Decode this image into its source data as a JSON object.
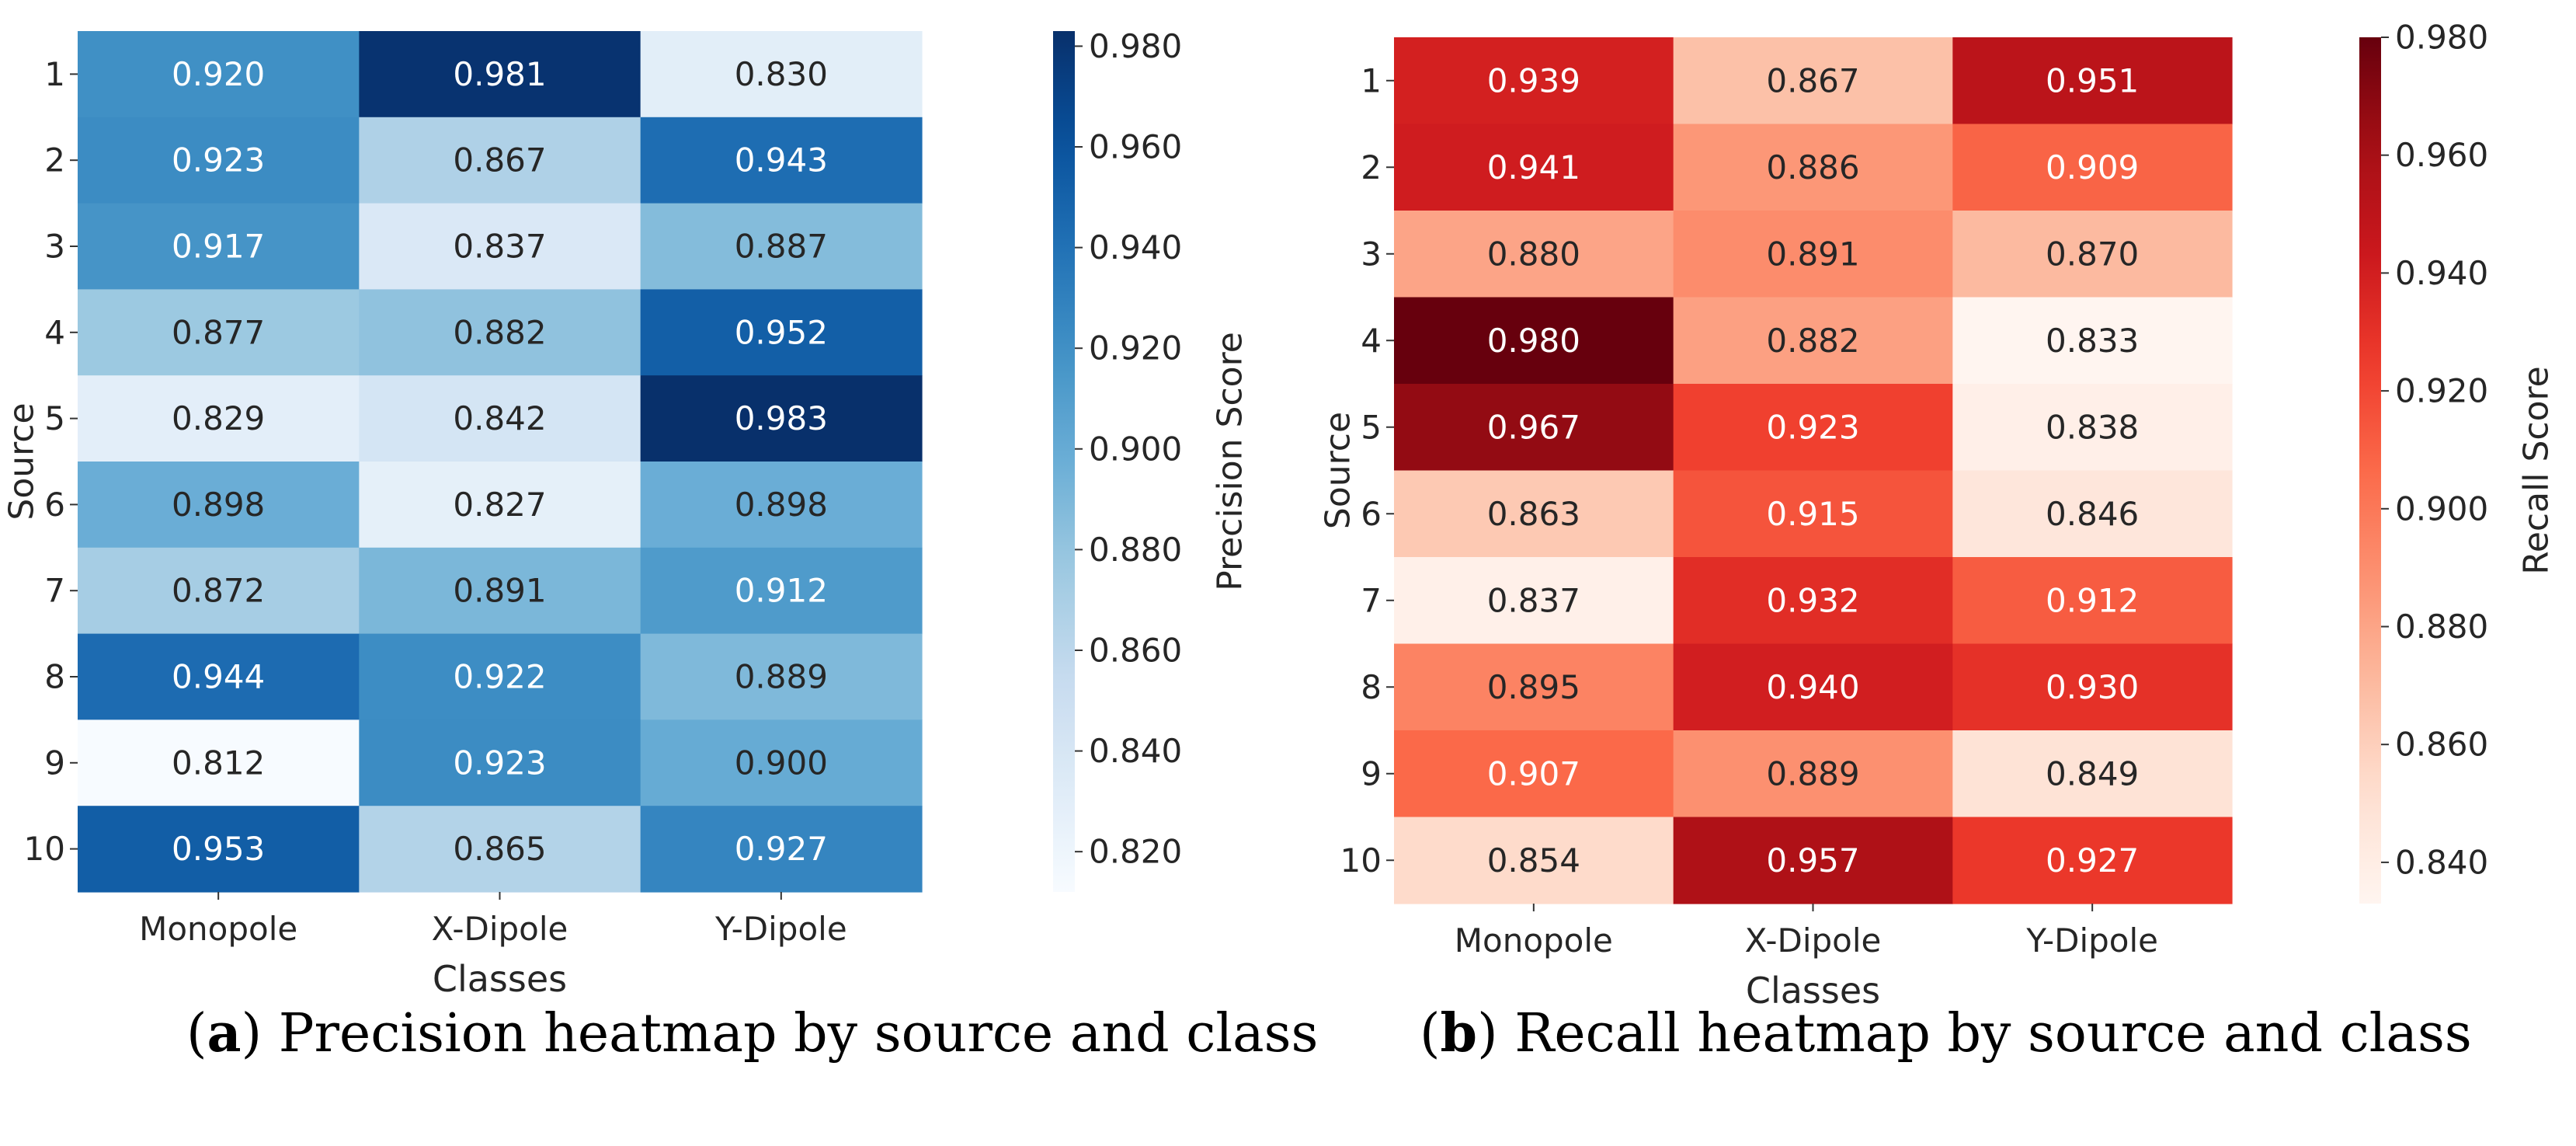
{
  "figure": {
    "captions": [
      {
        "letter": "a",
        "text": ") Precision heatmap by source and class"
      },
      {
        "letter": "b",
        "text": ") Recall heatmap by source and class"
      }
    ],
    "caption_open": "("
  },
  "chart_data": [
    {
      "type": "heatmap",
      "panel": "a",
      "xlabel": "Classes",
      "ylabel": "Source",
      "colorbar_label": "Precision Score",
      "colormap": "Blues",
      "x_categories": [
        "Monopole",
        "X-Dipole",
        "Y-Dipole"
      ],
      "y_categories": [
        "1",
        "2",
        "3",
        "4",
        "5",
        "6",
        "7",
        "8",
        "9",
        "10"
      ],
      "values": [
        [
          "0.920",
          "0.981",
          "0.830"
        ],
        [
          "0.923",
          "0.867",
          "0.943"
        ],
        [
          "0.917",
          "0.837",
          "0.887"
        ],
        [
          "0.877",
          "0.882",
          "0.952"
        ],
        [
          "0.829",
          "0.842",
          "0.983"
        ],
        [
          "0.898",
          "0.827",
          "0.898"
        ],
        [
          "0.872",
          "0.891",
          "0.912"
        ],
        [
          "0.944",
          "0.922",
          "0.889"
        ],
        [
          "0.812",
          "0.923",
          "0.900"
        ],
        [
          "0.953",
          "0.865",
          "0.927"
        ]
      ],
      "vmin": 0.812,
      "vmax": 0.983,
      "colorbar_ticks": [
        "0.980",
        "0.960",
        "0.940",
        "0.920",
        "0.900",
        "0.880",
        "0.860",
        "0.840",
        "0.820"
      ],
      "legend_placement": "right",
      "grid": false
    },
    {
      "type": "heatmap",
      "panel": "b",
      "xlabel": "Classes",
      "ylabel": "Source",
      "colorbar_label": "Recall Score",
      "colormap": "Reds",
      "x_categories": [
        "Monopole",
        "X-Dipole",
        "Y-Dipole"
      ],
      "y_categories": [
        "1",
        "2",
        "3",
        "4",
        "5",
        "6",
        "7",
        "8",
        "9",
        "10"
      ],
      "values": [
        [
          "0.939",
          "0.867",
          "0.951"
        ],
        [
          "0.941",
          "0.886",
          "0.909"
        ],
        [
          "0.880",
          "0.891",
          "0.870"
        ],
        [
          "0.980",
          "0.882",
          "0.833"
        ],
        [
          "0.967",
          "0.923",
          "0.838"
        ],
        [
          "0.863",
          "0.915",
          "0.846"
        ],
        [
          "0.837",
          "0.932",
          "0.912"
        ],
        [
          "0.895",
          "0.940",
          "0.930"
        ],
        [
          "0.907",
          "0.889",
          "0.849"
        ],
        [
          "0.854",
          "0.957",
          "0.927"
        ]
      ],
      "vmin": 0.833,
      "vmax": 0.98,
      "colorbar_ticks": [
        "0.980",
        "0.960",
        "0.940",
        "0.920",
        "0.900",
        "0.880",
        "0.860",
        "0.840"
      ],
      "legend_placement": "right",
      "grid": false
    }
  ]
}
